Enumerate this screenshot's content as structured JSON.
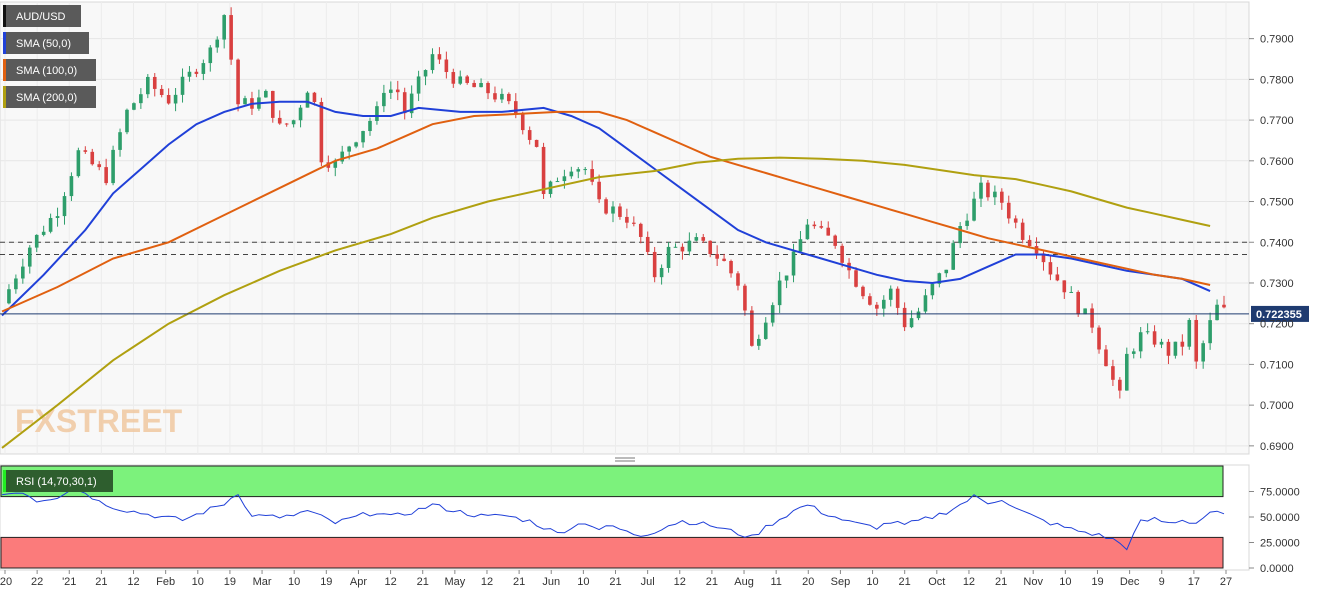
{
  "chart_data": [
    {
      "type": "candlestick",
      "symbol": "AUD/USD",
      "x_tick_labels": [
        "'20",
        "22",
        "'21",
        "21",
        "12",
        "Feb",
        "10",
        "19",
        "Mar",
        "10",
        "19",
        "Apr",
        "12",
        "21",
        "May",
        "12",
        "21",
        "Jun",
        "10",
        "21",
        "Jul",
        "12",
        "21",
        "Aug",
        "11",
        "20",
        "Sep",
        "10",
        "21",
        "Oct",
        "12",
        "21",
        "Nov",
        "10",
        "19",
        "Dec",
        "9",
        "17",
        "27"
      ],
      "y_tick_labels": [
        "0.7900",
        "0.7800",
        "0.7700",
        "0.7600",
        "0.7500",
        "0.7400",
        "0.7300",
        "0.7200",
        "0.7100",
        "0.7000",
        "0.6900"
      ],
      "ylim": [
        0.688,
        0.799
      ],
      "last_price": 0.7224,
      "last_price_label": "0.722355",
      "horizontal_levels": [
        0.74,
        0.737
      ],
      "price_path": [
        [
          0,
          0.725
        ],
        [
          4,
          0.739
        ],
        [
          8,
          0.748
        ],
        [
          11,
          0.762
        ],
        [
          15,
          0.756
        ],
        [
          18,
          0.772
        ],
        [
          21,
          0.779
        ],
        [
          24,
          0.775
        ],
        [
          27,
          0.781
        ],
        [
          30,
          0.787
        ],
        [
          32,
          0.796
        ],
        [
          34,
          0.774
        ],
        [
          36,
          0.774
        ],
        [
          38,
          0.776
        ],
        [
          40,
          0.768
        ],
        [
          42,
          0.77
        ],
        [
          44,
          0.778
        ],
        [
          45,
          0.774
        ],
        [
          46,
          0.761
        ],
        [
          48,
          0.759
        ],
        [
          50,
          0.764
        ],
        [
          52,
          0.768
        ],
        [
          54,
          0.772
        ],
        [
          55,
          0.778
        ],
        [
          57,
          0.777
        ],
        [
          58,
          0.772
        ],
        [
          60,
          0.779
        ],
        [
          62,
          0.786
        ],
        [
          64,
          0.782
        ],
        [
          66,
          0.779
        ],
        [
          68,
          0.778
        ],
        [
          70,
          0.777
        ],
        [
          72,
          0.775
        ],
        [
          74,
          0.772
        ],
        [
          76,
          0.766
        ],
        [
          77,
          0.764
        ],
        [
          78,
          0.751
        ],
        [
          80,
          0.756
        ],
        [
          82,
          0.759
        ],
        [
          84,
          0.758
        ],
        [
          86,
          0.749
        ],
        [
          88,
          0.748
        ],
        [
          90,
          0.746
        ],
        [
          92,
          0.741
        ],
        [
          93,
          0.736
        ],
        [
          94,
          0.732
        ],
        [
          96,
          0.738
        ],
        [
          98,
          0.739
        ],
        [
          100,
          0.74
        ],
        [
          102,
          0.738
        ],
        [
          104,
          0.735
        ],
        [
          106,
          0.73
        ],
        [
          107,
          0.723
        ],
        [
          108,
          0.714
        ],
        [
          110,
          0.722
        ],
        [
          112,
          0.73
        ],
        [
          114,
          0.736
        ],
        [
          116,
          0.745
        ],
        [
          118,
          0.742
        ],
        [
          120,
          0.74
        ],
        [
          122,
          0.733
        ],
        [
          124,
          0.728
        ],
        [
          126,
          0.724
        ],
        [
          128,
          0.728
        ],
        [
          130,
          0.72
        ],
        [
          132,
          0.723
        ],
        [
          134,
          0.729
        ],
        [
          136,
          0.734
        ],
        [
          138,
          0.744
        ],
        [
          140,
          0.75
        ],
        [
          141,
          0.753
        ],
        [
          142,
          0.752
        ],
        [
          144,
          0.75
        ],
        [
          145,
          0.747
        ],
        [
          147,
          0.742
        ],
        [
          149,
          0.739
        ],
        [
          151,
          0.733
        ],
        [
          153,
          0.729
        ],
        [
          155,
          0.724
        ],
        [
          157,
          0.72
        ],
        [
          158,
          0.715
        ],
        [
          159,
          0.711
        ],
        [
          160,
          0.706
        ],
        [
          161,
          0.702
        ],
        [
          162,
          0.712
        ],
        [
          164,
          0.717
        ],
        [
          166,
          0.716
        ],
        [
          168,
          0.713
        ],
        [
          170,
          0.715
        ],
        [
          171,
          0.72
        ],
        [
          172,
          0.71
        ],
        [
          174,
          0.72
        ],
        [
          175,
          0.724
        ],
        [
          176,
          0.723
        ]
      ],
      "series": [
        {
          "name": "SMA (50,0)",
          "color": "#2040d8",
          "points": [
            [
              0,
              0.722
            ],
            [
              6,
              0.732
            ],
            [
              12,
              0.743
            ],
            [
              16,
              0.752
            ],
            [
              20,
              0.758
            ],
            [
              24,
              0.764
            ],
            [
              28,
              0.769
            ],
            [
              32,
              0.772
            ],
            [
              36,
              0.774
            ],
            [
              40,
              0.7745
            ],
            [
              44,
              0.7745
            ],
            [
              48,
              0.772
            ],
            [
              52,
              0.771
            ],
            [
              56,
              0.771
            ],
            [
              60,
              0.773
            ],
            [
              66,
              0.772
            ],
            [
              72,
              0.772
            ],
            [
              78,
              0.773
            ],
            [
              82,
              0.771
            ],
            [
              86,
              0.768
            ],
            [
              90,
              0.763
            ],
            [
              94,
              0.758
            ],
            [
              98,
              0.753
            ],
            [
              102,
              0.748
            ],
            [
              106,
              0.743
            ],
            [
              110,
              0.74
            ],
            [
              114,
              0.738
            ],
            [
              118,
              0.736
            ],
            [
              122,
              0.734
            ],
            [
              126,
              0.732
            ],
            [
              130,
              0.7305
            ],
            [
              134,
              0.73
            ],
            [
              138,
              0.731
            ],
            [
              142,
              0.734
            ],
            [
              146,
              0.737
            ],
            [
              150,
              0.737
            ],
            [
              154,
              0.736
            ],
            [
              158,
              0.7345
            ],
            [
              162,
              0.733
            ],
            [
              166,
              0.732
            ],
            [
              170,
              0.731
            ],
            [
              174,
              0.728
            ]
          ]
        },
        {
          "name": "SMA (100,0)",
          "color": "#e06010",
          "points": [
            [
              0,
              0.723
            ],
            [
              8,
              0.729
            ],
            [
              16,
              0.736
            ],
            [
              24,
              0.74
            ],
            [
              30,
              0.745
            ],
            [
              36,
              0.75
            ],
            [
              42,
              0.755
            ],
            [
              48,
              0.76
            ],
            [
              54,
              0.763
            ],
            [
              58,
              0.766
            ],
            [
              62,
              0.769
            ],
            [
              68,
              0.771
            ],
            [
              74,
              0.7715
            ],
            [
              80,
              0.772
            ],
            [
              86,
              0.772
            ],
            [
              90,
              0.77
            ],
            [
              94,
              0.767
            ],
            [
              98,
              0.764
            ],
            [
              102,
              0.761
            ],
            [
              106,
              0.759
            ],
            [
              110,
              0.757
            ],
            [
              114,
              0.755
            ],
            [
              118,
              0.753
            ],
            [
              122,
              0.751
            ],
            [
              126,
              0.749
            ],
            [
              130,
              0.747
            ],
            [
              134,
              0.745
            ],
            [
              138,
              0.743
            ],
            [
              142,
              0.741
            ],
            [
              146,
              0.7395
            ],
            [
              150,
              0.738
            ],
            [
              154,
              0.7365
            ],
            [
              158,
              0.735
            ],
            [
              162,
              0.7335
            ],
            [
              166,
              0.732
            ],
            [
              170,
              0.731
            ],
            [
              174,
              0.7295
            ]
          ]
        },
        {
          "name": "SMA (200,0)",
          "color": "#b0a010",
          "points": [
            [
              0,
              0.6895
            ],
            [
              8,
              0.7
            ],
            [
              16,
              0.711
            ],
            [
              24,
              0.72
            ],
            [
              32,
              0.727
            ],
            [
              40,
              0.733
            ],
            [
              48,
              0.738
            ],
            [
              56,
              0.742
            ],
            [
              62,
              0.746
            ],
            [
              70,
              0.75
            ],
            [
              78,
              0.753
            ],
            [
              86,
              0.756
            ],
            [
              94,
              0.7575
            ],
            [
              100,
              0.7595
            ],
            [
              106,
              0.7605
            ],
            [
              112,
              0.7608
            ],
            [
              118,
              0.7605
            ],
            [
              124,
              0.76
            ],
            [
              130,
              0.759
            ],
            [
              136,
              0.7575
            ],
            [
              140,
              0.7565
            ],
            [
              146,
              0.7555
            ],
            [
              150,
              0.754
            ],
            [
              154,
              0.7525
            ],
            [
              158,
              0.7505
            ],
            [
              162,
              0.7485
            ],
            [
              166,
              0.747
            ],
            [
              170,
              0.7455
            ],
            [
              174,
              0.744
            ]
          ]
        }
      ]
    },
    {
      "type": "line",
      "indicator": "RSI (14,70,30,1)",
      "y_tick_labels": [
        "75.0000",
        "50.0000",
        "25.0000",
        "0.0000"
      ],
      "ylim": [
        0,
        100
      ],
      "overbought": 70,
      "oversold": 30,
      "color": "#2040d8",
      "points": [
        [
          0,
          72
        ],
        [
          3,
          75
        ],
        [
          5,
          66
        ],
        [
          8,
          70
        ],
        [
          10,
          78
        ],
        [
          12,
          74
        ],
        [
          14,
          65
        ],
        [
          17,
          58
        ],
        [
          20,
          54
        ],
        [
          23,
          50
        ],
        [
          26,
          47
        ],
        [
          29,
          55
        ],
        [
          32,
          63
        ],
        [
          34,
          74
        ],
        [
          36,
          50
        ],
        [
          38,
          53
        ],
        [
          40,
          48
        ],
        [
          42,
          52
        ],
        [
          44,
          56
        ],
        [
          46,
          50
        ],
        [
          48,
          44
        ],
        [
          50,
          48
        ],
        [
          52,
          52
        ],
        [
          54,
          55
        ],
        [
          56,
          50
        ],
        [
          58,
          53
        ],
        [
          60,
          57
        ],
        [
          62,
          62
        ],
        [
          64,
          58
        ],
        [
          66,
          55
        ],
        [
          68,
          52
        ],
        [
          70,
          50
        ],
        [
          72,
          52
        ],
        [
          74,
          49
        ],
        [
          76,
          46
        ],
        [
          78,
          40
        ],
        [
          80,
          34
        ],
        [
          82,
          40
        ],
        [
          84,
          45
        ],
        [
          86,
          38
        ],
        [
          88,
          41
        ],
        [
          90,
          35
        ],
        [
          92,
          32
        ],
        [
          94,
          36
        ],
        [
          96,
          42
        ],
        [
          98,
          46
        ],
        [
          100,
          44
        ],
        [
          102,
          42
        ],
        [
          104,
          38
        ],
        [
          106,
          34
        ],
        [
          108,
          30
        ],
        [
          110,
          40
        ],
        [
          112,
          48
        ],
        [
          114,
          56
        ],
        [
          116,
          62
        ],
        [
          118,
          55
        ],
        [
          120,
          50
        ],
        [
          122,
          45
        ],
        [
          124,
          42
        ],
        [
          126,
          40
        ],
        [
          128,
          45
        ],
        [
          130,
          42
        ],
        [
          132,
          46
        ],
        [
          134,
          50
        ],
        [
          136,
          55
        ],
        [
          138,
          62
        ],
        [
          140,
          70
        ],
        [
          142,
          64
        ],
        [
          144,
          68
        ],
        [
          146,
          58
        ],
        [
          148,
          52
        ],
        [
          150,
          46
        ],
        [
          152,
          42
        ],
        [
          154,
          38
        ],
        [
          156,
          35
        ],
        [
          158,
          32
        ],
        [
          160,
          28
        ],
        [
          162,
          20
        ],
        [
          164,
          45
        ],
        [
          166,
          48
        ],
        [
          168,
          44
        ],
        [
          170,
          47
        ],
        [
          172,
          44
        ],
        [
          174,
          55
        ],
        [
          176,
          52
        ]
      ]
    }
  ],
  "ui": {
    "symbol_label": "AUD/USD",
    "sma50_label": "SMA (50,0)",
    "sma100_label": "SMA (100,0)",
    "sma200_label": "SMA (200,0)",
    "rsi_label": "RSI (14,70,30,1)",
    "price_tag": "0.722355",
    "watermark": "FXSTREET"
  },
  "colors": {
    "sma50": "#2040d8",
    "sma100": "#e06010",
    "sma200": "#b0a010",
    "bull": "#2e9e6b",
    "bear": "#d94040",
    "overbought_zone": "#7cf27c",
    "oversold_zone": "#fb7b7b",
    "price_tag_bg": "#1f3b70"
  }
}
